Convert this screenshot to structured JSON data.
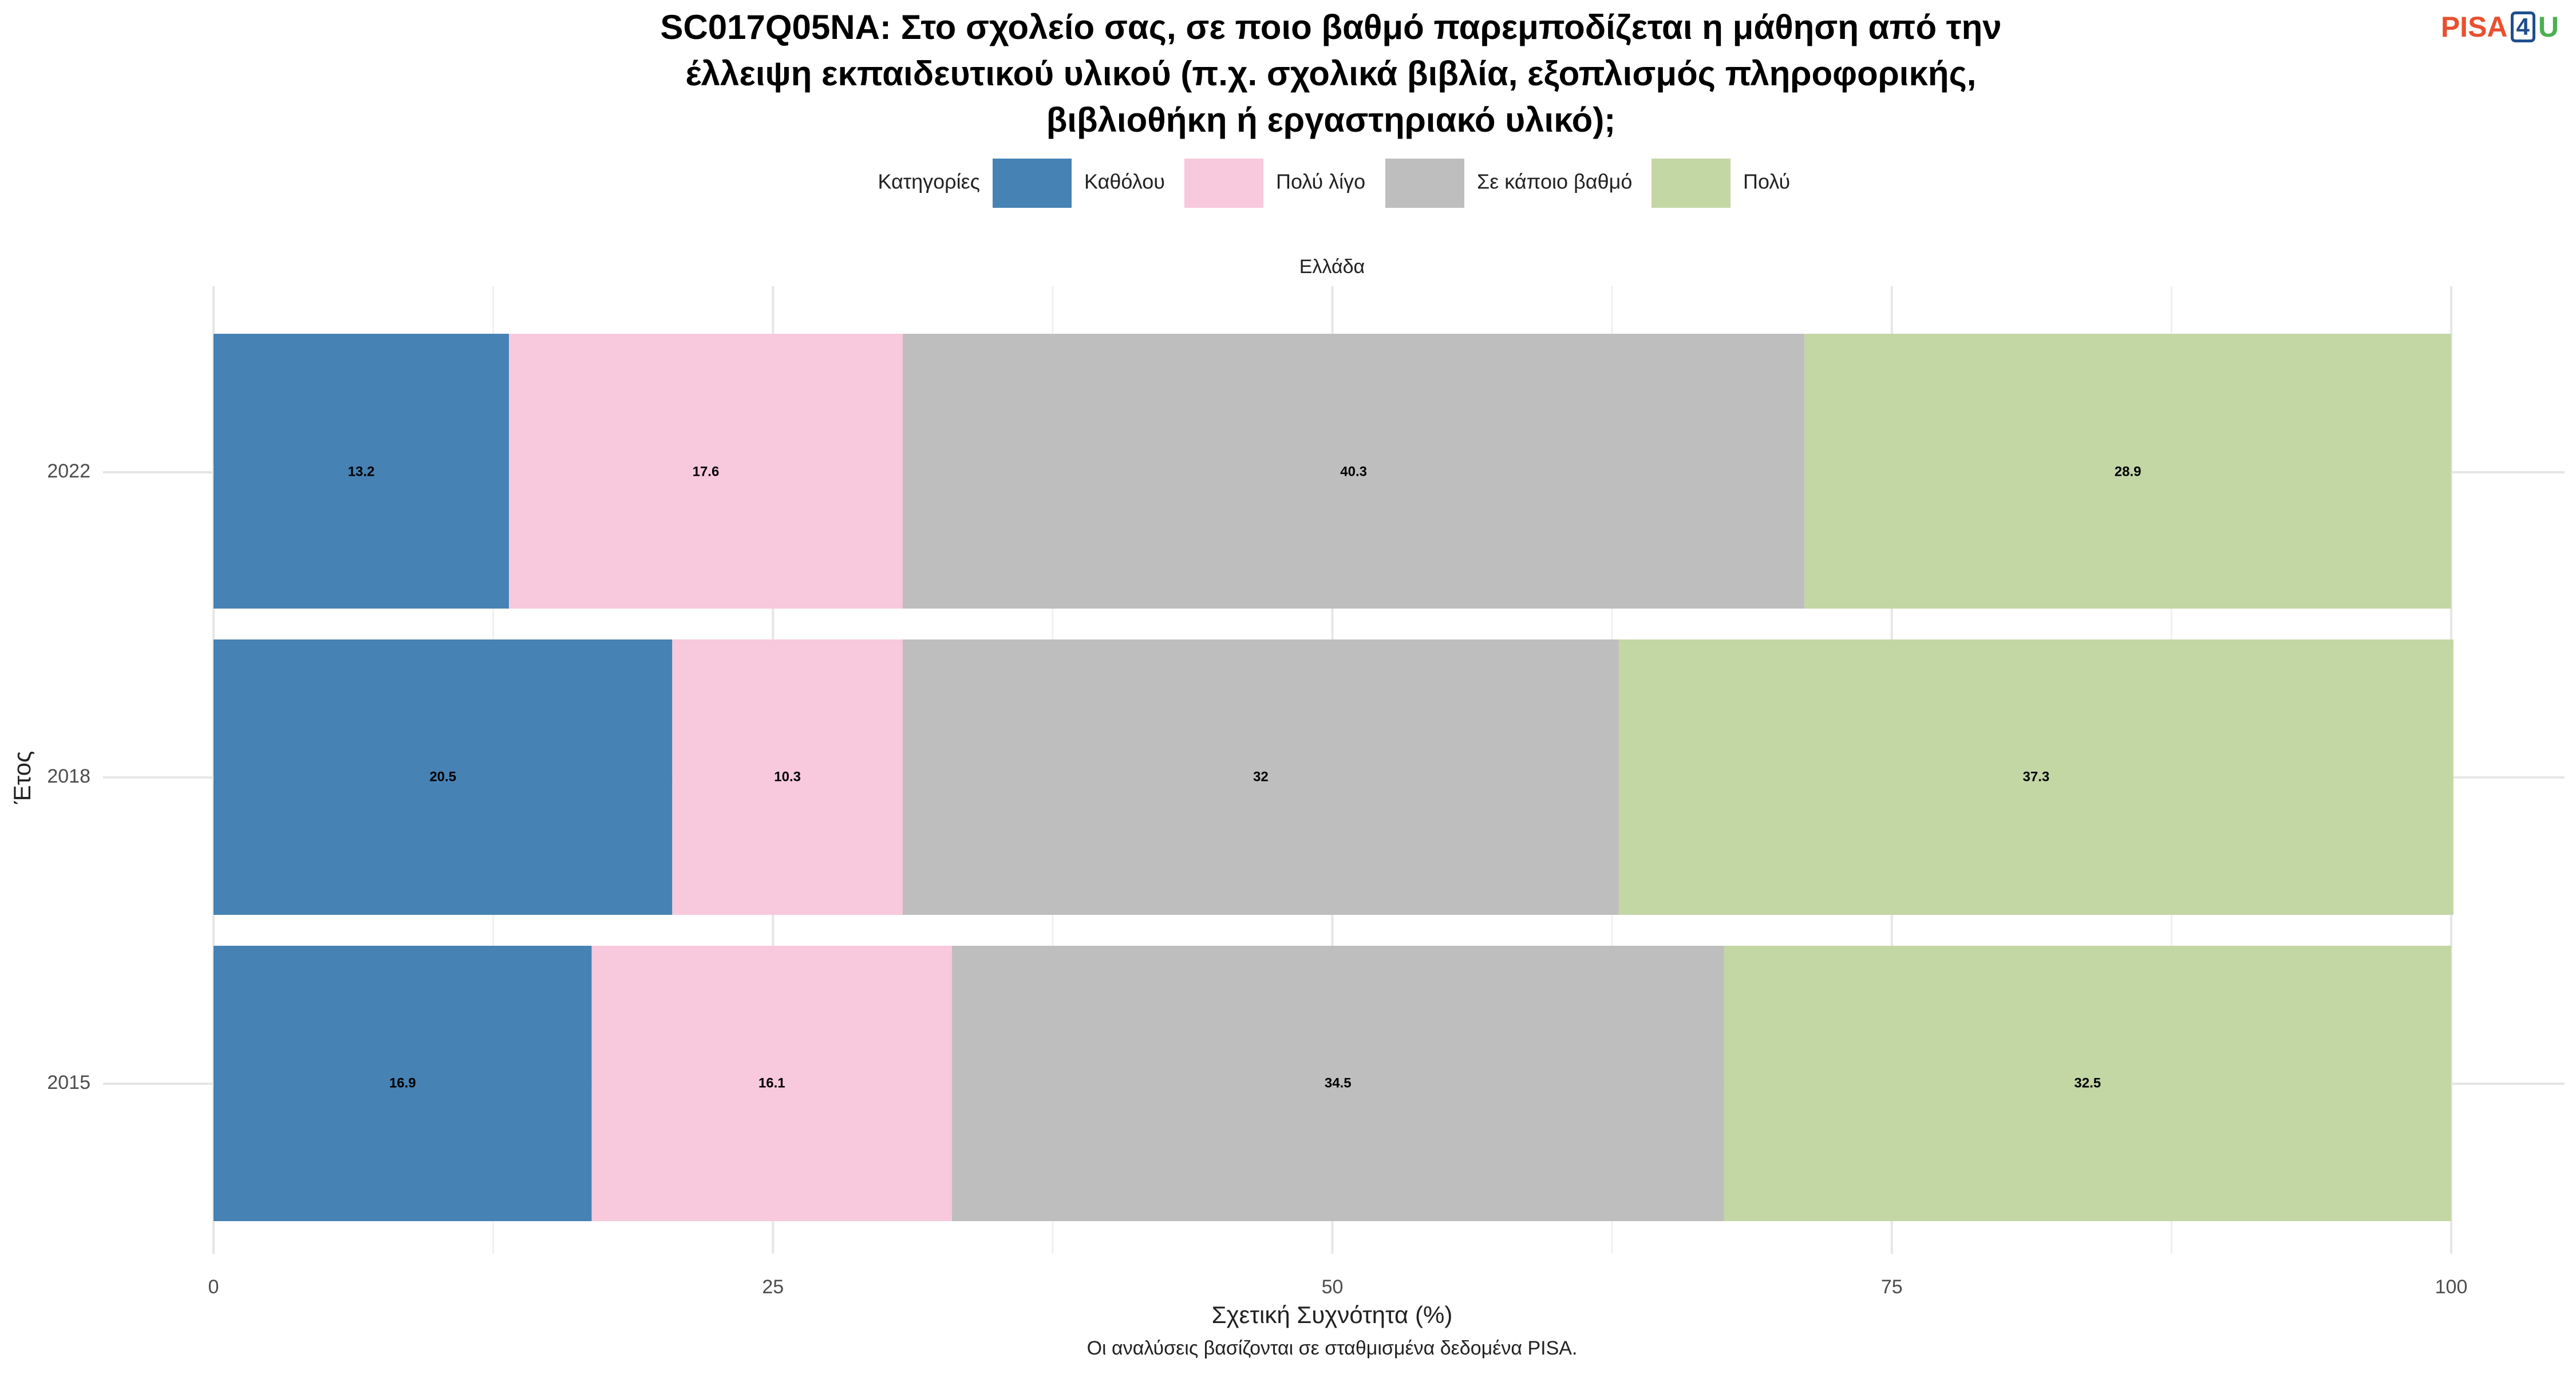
{
  "logo": {
    "part1": "PISA",
    "part2": "4",
    "part3": "U"
  },
  "chart_data": {
    "type": "bar",
    "orientation": "horizontal",
    "stacked": true,
    "title": "SC017Q05NA: Στο σχολείο σας, σε ποιο βαθμό παρεμποδίζεται η μάθηση από την έλλειψη εκπαιδευτικού υλικού (π.χ. σχολικά βιβλία, εξοπλισμός πληροφορικής, βιβλιοθήκη ή εργαστηριακό υλικό);",
    "title_lines": [
      "SC017Q05NA: Στο σχολείο σας, σε ποιο βαθμό παρεμποδίζεται η μάθηση από την",
      "έλλειψη εκπαιδευτικού υλικού (π.χ. σχολικά βιβλία, εξοπλισμός πληροφορικής,",
      "βιβλιοθήκη ή εργαστηριακό υλικό);"
    ],
    "legend_title": "Κατηγορίες",
    "legend_position": "top",
    "facet_label": "Ελλάδα",
    "xlabel": "Σχετική Συχνότητα (%)",
    "ylabel": "Έτος",
    "caption": "Οι αναλύσεις βασίζονται σε σταθμισμένα δεδομένα PISA.",
    "xlim": [
      0,
      100
    ],
    "x_ticks": [
      0,
      25,
      50,
      75,
      100
    ],
    "grid": true,
    "categories": [
      "2022",
      "2018",
      "2015"
    ],
    "series": [
      {
        "name": "Καθόλου",
        "color": "#4682b4",
        "values": [
          13.2,
          20.5,
          16.9
        ]
      },
      {
        "name": "Πολύ λίγο",
        "color": "#f8c8dc",
        "values": [
          17.6,
          10.3,
          16.1
        ]
      },
      {
        "name": "Σε κάποιο βαθμό",
        "color": "#bebebe",
        "values": [
          40.3,
          32,
          34.5
        ]
      },
      {
        "name": "Πολύ",
        "color": "#c3d7a4",
        "values": [
          28.9,
          37.3,
          32.5
        ]
      }
    ]
  }
}
